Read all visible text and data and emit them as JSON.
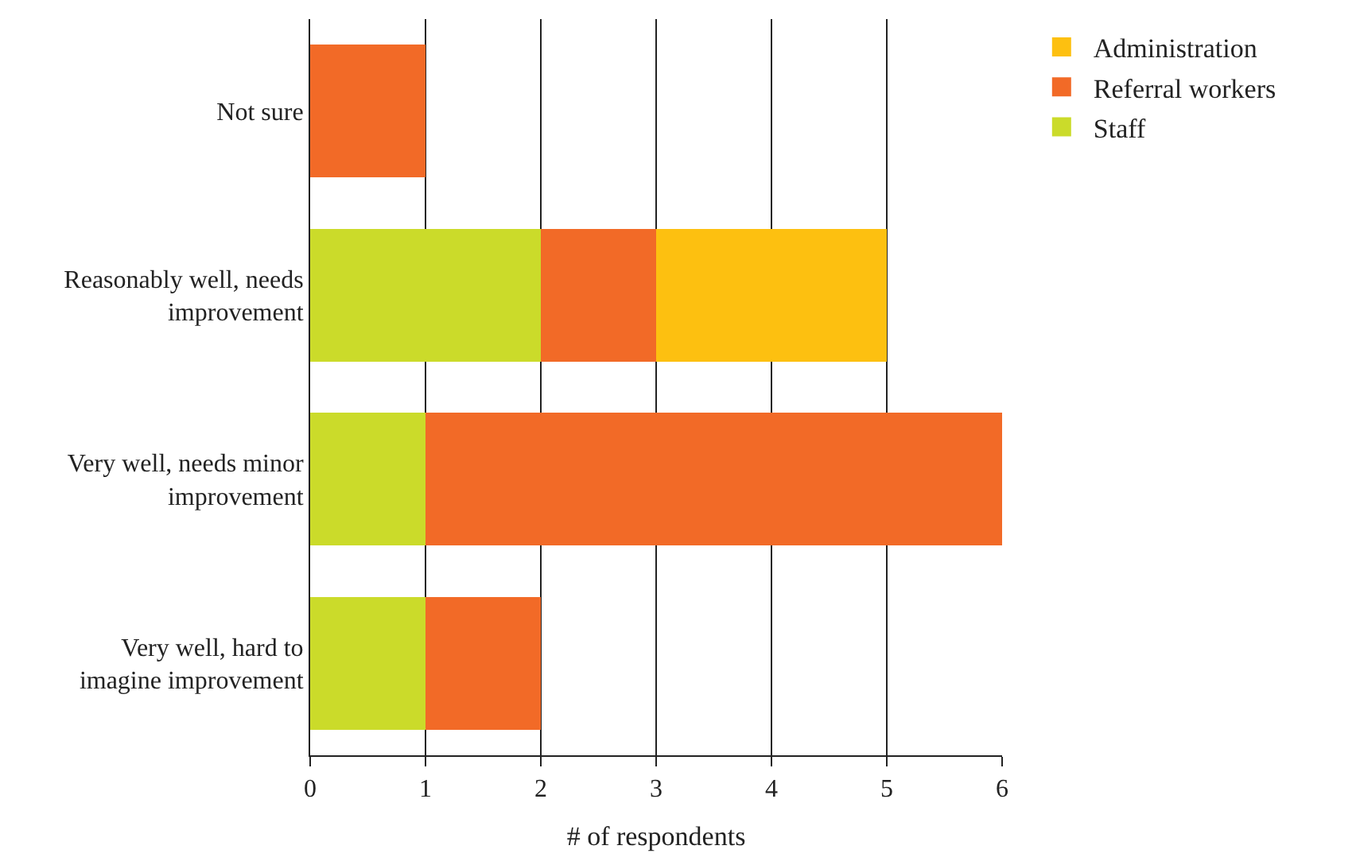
{
  "chart_data": {
    "type": "bar",
    "orientation": "horizontal",
    "stacked": true,
    "xlabel": "# of respondents",
    "categories": [
      "Not sure",
      "Reasonably well, needs improvement",
      "Very well, needs minor improvement",
      "Very well, hard to imagine improvement"
    ],
    "series": [
      {
        "name": "Staff",
        "color": "#cbdb2a",
        "values": [
          null,
          2,
          1,
          1
        ]
      },
      {
        "name": "Referral workers",
        "color": "#f26a27",
        "values": [
          1,
          1,
          5,
          1
        ]
      },
      {
        "name": "Administration",
        "color": "#fdc010",
        "values": [
          null,
          2,
          null,
          null
        ]
      }
    ],
    "xlim": [
      0,
      6
    ],
    "xticks": [
      0,
      1,
      2,
      3,
      4,
      5,
      6
    ],
    "grid": "x",
    "legend": "top right"
  }
}
